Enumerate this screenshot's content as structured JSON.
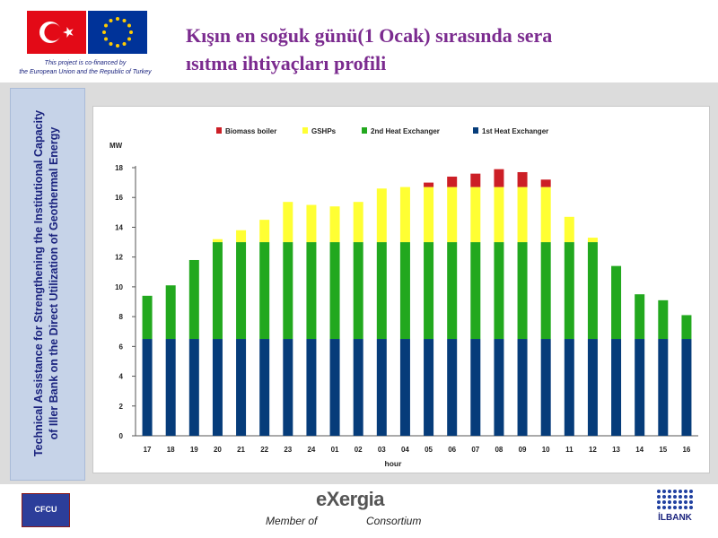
{
  "header": {
    "cofinance_line1": "This project is co-financed by",
    "cofinance_line2": "the European Union and the Republic of Turkey",
    "title_line1": "Kışın en soğuk günü(1 Ocak) sırasında sera",
    "title_line2": "ısıtma ihtiyaçları profili"
  },
  "side": {
    "line1": "Technical Assistance for Strengthening the Institutional Capacity",
    "line2": "of Iller Bank on the Direct Utilization of Geothermal Energy"
  },
  "footer": {
    "cfcu_label": "CFCU",
    "exergia_label": "eXergia",
    "member_of": "Member of",
    "consortium": "Consortium",
    "ilbank_label": "İLBANK"
  },
  "colors": {
    "biomass": "#cc1f26",
    "gshp": "#ffff33",
    "heat2": "#22a81e",
    "heat1": "#063c7a"
  },
  "chart_data": {
    "type": "bar",
    "stacked": true,
    "categories": [
      "17",
      "18",
      "19",
      "20",
      "21",
      "22",
      "23",
      "24",
      "01",
      "02",
      "03",
      "04",
      "05",
      "06",
      "07",
      "08",
      "09",
      "10",
      "11",
      "12",
      "13",
      "14",
      "15",
      "16"
    ],
    "series": [
      {
        "name": "1st Heat Exchanger",
        "color": "#063c7a",
        "values": [
          6.5,
          6.5,
          6.5,
          6.5,
          6.5,
          6.5,
          6.5,
          6.5,
          6.5,
          6.5,
          6.5,
          6.5,
          6.5,
          6.5,
          6.5,
          6.5,
          6.5,
          6.5,
          6.5,
          6.5,
          6.5,
          6.5,
          6.5,
          6.5
        ]
      },
      {
        "name": "2nd Heat Exchanger",
        "color": "#22a81e",
        "values": [
          2.9,
          3.6,
          5.3,
          6.5,
          6.5,
          6.5,
          6.5,
          6.5,
          6.5,
          6.5,
          6.5,
          6.5,
          6.5,
          6.5,
          6.5,
          6.5,
          6.5,
          6.5,
          6.5,
          6.5,
          4.9,
          3.0,
          2.6,
          1.6
        ]
      },
      {
        "name": "GSHPs",
        "color": "#ffff33",
        "values": [
          0,
          0,
          0,
          0.2,
          0.8,
          1.5,
          2.7,
          2.5,
          2.4,
          2.7,
          3.6,
          3.7,
          3.7,
          3.7,
          3.7,
          3.7,
          3.7,
          3.7,
          1.7,
          0.3,
          0,
          0,
          0,
          0
        ]
      },
      {
        "name": "Biomass boiler",
        "color": "#cc1f26",
        "values": [
          0,
          0,
          0,
          0,
          0,
          0,
          0,
          0,
          0,
          0,
          0,
          0,
          0.3,
          0.7,
          0.9,
          1.2,
          1.0,
          0.5,
          0,
          0,
          0,
          0,
          0,
          0
        ]
      }
    ],
    "legend_order": [
      "Biomass boiler",
      "GSHPs",
      "2nd Heat Exchanger",
      "1st Heat Exchanger"
    ],
    "legend_position": "top",
    "xlabel": "hour",
    "ylabel": "MW",
    "ylim": [
      0,
      18
    ],
    "yticks": [
      0,
      2,
      4,
      6,
      8,
      10,
      12,
      14,
      16,
      18
    ],
    "grid": false
  }
}
